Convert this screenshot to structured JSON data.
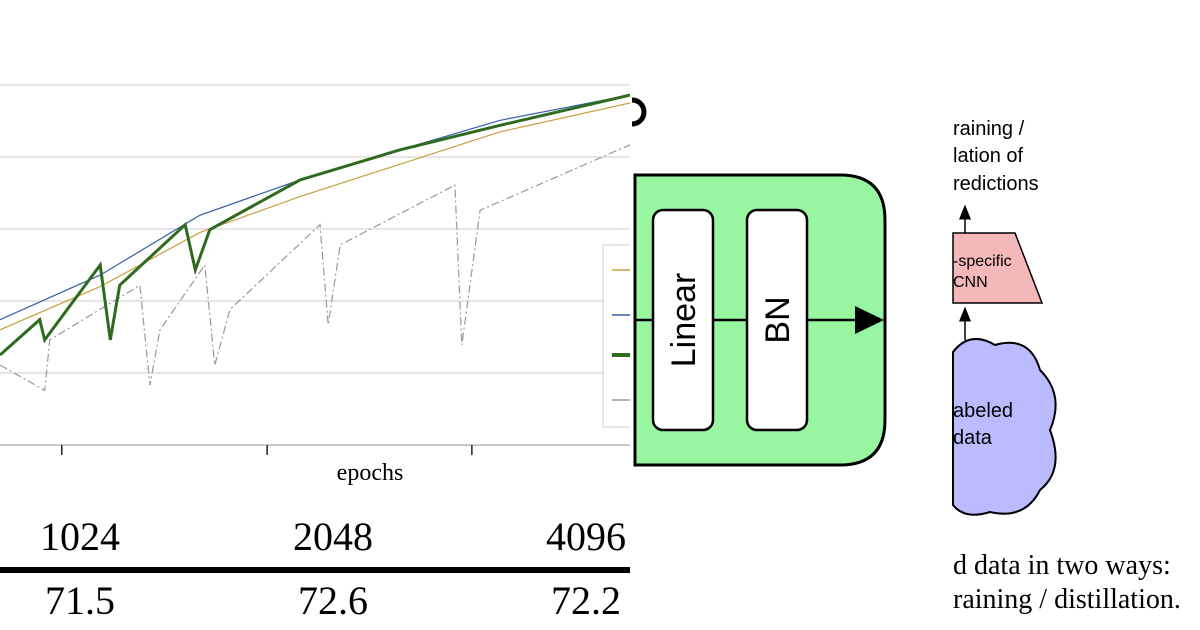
{
  "plot": {
    "x_label": "epochs",
    "xlim": [
      0,
      100
    ],
    "ylim": [
      0,
      5
    ],
    "xticks": [
      9.8,
      42.4,
      74.9
    ],
    "ygrid": [
      0,
      1,
      2,
      3,
      4,
      5
    ],
    "series": [
      {
        "color": "#3a5fa8",
        "width": 1.2,
        "dash": "",
        "x": [
          0,
          15.9,
          31.7,
          47.6,
          63.5,
          79.4,
          100
        ],
        "values": [
          1.74,
          2.36,
          3.19,
          3.68,
          4.1,
          4.51,
          4.86
        ]
      },
      {
        "color": "#c9a040",
        "width": 1.2,
        "dash": "",
        "x": [
          0,
          15.9,
          31.7,
          47.6,
          63.5,
          79.4,
          100
        ],
        "values": [
          1.6,
          2.2,
          2.95,
          3.45,
          3.9,
          4.35,
          4.75
        ]
      },
      {
        "color": "#2e6b1e",
        "width": 3,
        "dash": "",
        "x": [
          0,
          6.3,
          7.1,
          15.9,
          17.5,
          19,
          29.4,
          31,
          33.3,
          47.6,
          63.5,
          79.4,
          100
        ],
        "values": [
          1.25,
          1.74,
          1.46,
          2.5,
          1.46,
          2.22,
          3.06,
          2.43,
          2.99,
          3.68,
          4.1,
          4.44,
          4.86
        ]
      },
      {
        "color": "#999999",
        "width": 1.2,
        "dash": "8 3 2 3",
        "x": [
          0,
          7.1,
          7.9,
          22.2,
          23.8,
          25.4,
          32.5,
          34.1,
          36.5,
          50.8,
          52.1,
          54,
          72.2,
          73.3,
          76.2,
          100
        ],
        "values": [
          1.11,
          0.76,
          1.46,
          2.22,
          0.83,
          1.6,
          2.5,
          1.11,
          1.88,
          3.06,
          1.67,
          2.78,
          3.61,
          1.39,
          3.26,
          4.17
        ]
      }
    ]
  },
  "table": {
    "rows": [
      [
        "1024",
        "2048",
        "4096"
      ],
      [
        "71.5",
        "72.6",
        "72.2"
      ]
    ]
  },
  "block": {
    "boxes": [
      "Linear",
      "BN"
    ]
  },
  "diagram": {
    "top_text": [
      "raining /",
      "lation of",
      "redictions"
    ],
    "cnn_text": [
      "-specific",
      "CNN"
    ],
    "cloud_text": [
      "abeled",
      "data"
    ],
    "caption": [
      "d data in two ways:",
      "raining / distillation."
    ]
  }
}
